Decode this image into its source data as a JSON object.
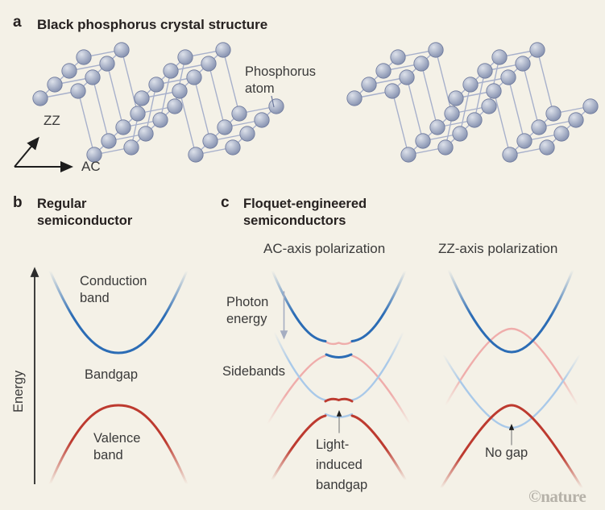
{
  "panel_a": {
    "letter": "a",
    "title": "Black phosphorus crystal structure",
    "atom_label": "Phosphorus atom",
    "axis_zz": "ZZ",
    "axis_ac": "AC"
  },
  "panel_b": {
    "letter": "b",
    "title": "Regular semiconductor",
    "energy_axis": "Energy",
    "conduction_band": "Conduction band",
    "bandgap": "Bandgap",
    "valence_band": "Valence band"
  },
  "panel_c": {
    "letter": "c",
    "title": "Floquet-engineered semiconductors",
    "ac_subtitle": "AC-axis polarization",
    "zz_subtitle": "ZZ-axis polarization",
    "photon_energy": "Photon energy",
    "sidebands": "Sidebands",
    "light_induced_bandgap": "Light-induced bandgap",
    "no_gap": "No gap"
  },
  "watermark": "©nature",
  "colors": {
    "background": "#f4f1e7",
    "conduction_blue": "#2b6cb5",
    "valence_red": "#bd3a2f",
    "sideband_pink": "#efadab",
    "sideband_light_blue": "#a9c9e9",
    "atom_fill": "#a8b1c7",
    "atom_edge": "#6b779b",
    "bond": "#a7b0cb",
    "text": "#3a3a3a",
    "gray_arrow": "#a5adc1"
  }
}
